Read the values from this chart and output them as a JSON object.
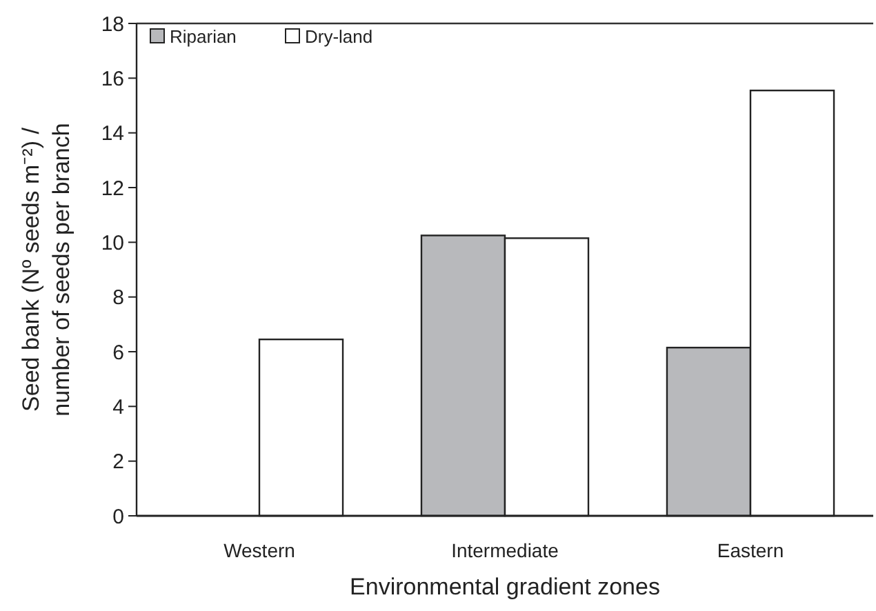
{
  "chart_data": {
    "type": "bar",
    "xlabel": "Environmental gradient zones",
    "ylabel": "Seed bank (Nº seeds m⁻²) /\nnumber of seeds per branch",
    "categories": [
      "Western",
      "Intermediate",
      "Eastern"
    ],
    "series": [
      {
        "name": "Riparian",
        "color": "#b8b9bc",
        "values": [
          null,
          10.25,
          6.15
        ]
      },
      {
        "name": "Dry-land",
        "color": "#ffffff",
        "values": [
          6.45,
          10.15,
          15.55
        ]
      }
    ],
    "ylim": [
      0,
      18
    ],
    "yticks": [
      0,
      2,
      4,
      6,
      8,
      10,
      12,
      14,
      16,
      18
    ],
    "grid": false,
    "legend": "top left"
  }
}
